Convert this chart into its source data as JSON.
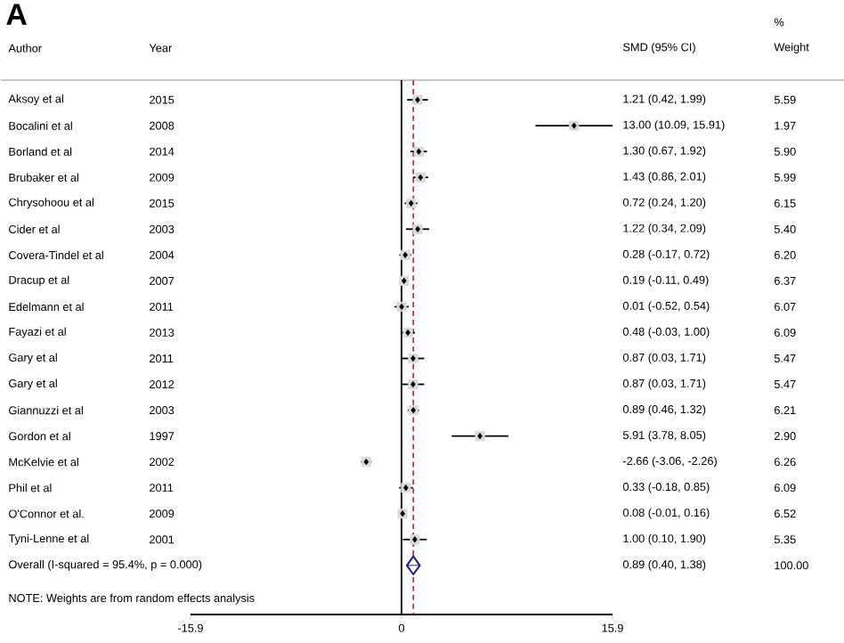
{
  "chart_data": {
    "type": "scatter",
    "orientation": "horizontal",
    "title": "A",
    "categories": [
      "Aksoy et al",
      "Bocalini et al",
      "Borland et al",
      "Brubaker et al",
      "Chrysohoou et al",
      "Cider et al",
      "Covera-Tindel et al",
      "Dracup et al",
      "Edelmann et al",
      "Fayazi et al",
      "Gary  et al",
      "Gary et al",
      "Giannuzzi et al",
      "Gordon et al",
      "McKelvie et al",
      "Phil et al",
      "O'Connor et al.",
      "Tyni-Lenne et al",
      "Overall  (I-squared = 95.4%, p = 0.000)"
    ],
    "series": [
      {
        "color": "#000000",
        "marker": "diamond",
        "values": [
          1.21,
          13.0,
          1.3,
          1.43,
          0.72,
          1.22,
          0.28,
          0.19,
          0.01,
          0.48,
          0.87,
          0.87,
          0.89,
          5.91,
          -2.66,
          0.33,
          0.08,
          1.0,
          null
        ],
        "errors": [
          [
            0.42,
            1.99
          ],
          [
            10.09,
            15.91
          ],
          [
            0.67,
            1.92
          ],
          [
            0.86,
            2.01
          ],
          [
            0.24,
            1.2
          ],
          [
            0.34,
            2.09
          ],
          [
            -0.17,
            0.72
          ],
          [
            -0.11,
            0.49
          ],
          [
            -0.52,
            0.54
          ],
          [
            -0.03,
            1.0
          ],
          [
            0.03,
            1.71
          ],
          [
            0.03,
            1.71
          ],
          [
            0.46,
            1.32
          ],
          [
            3.78,
            8.05
          ],
          [
            -3.06,
            -2.26
          ],
          [
            -0.18,
            0.85
          ],
          [
            -0.01,
            0.16
          ],
          [
            0.1,
            1.9
          ],
          null
        ]
      },
      {
        "color": "#1a1a8c",
        "marker": "diamond",
        "values": [
          null,
          null,
          null,
          null,
          null,
          null,
          null,
          null,
          null,
          null,
          null,
          null,
          null,
          null,
          null,
          null,
          null,
          null,
          0.89
        ],
        "errors": [
          null,
          null,
          null,
          null,
          null,
          null,
          null,
          null,
          null,
          null,
          null,
          null,
          null,
          null,
          null,
          null,
          null,
          null,
          [
            0.4,
            1.38
          ]
        ]
      }
    ],
    "xlim": [
      -15.9,
      15.9
    ],
    "xticks": [
      -15.9,
      0,
      15.9
    ],
    "ref_lines": [
      {
        "axis": "x",
        "value": 0,
        "color": "#000000",
        "line_style": "solid"
      },
      {
        "axis": "x",
        "value": 0.89,
        "color": "#b03050",
        "line_style": "dashed"
      }
    ],
    "annotations": [
      "Author",
      "Year",
      "SMD (95% CI)",
      "%",
      "Weight",
      "NOTE: Weights are from random effects analysis",
      "2015",
      "2008",
      "2014",
      "2009",
      "2015",
      "2003",
      "2004",
      "2007",
      "2011",
      "2013",
      "2011",
      "2012",
      "2003",
      "1997",
      "2002",
      "2011",
      "2009",
      "2001",
      "5.59",
      "1.97",
      "5.90",
      "5.99",
      "6.15",
      "5.40",
      "6.20",
      "6.37",
      "6.07",
      "6.09",
      "5.47",
      "5.47",
      "6.21",
      "2.90",
      "6.26",
      "6.09",
      "6.52",
      "5.35",
      "100.00",
      "1.21 (0.42, 1.99)",
      "13.00 (10.09, 15.91)",
      "1.30 (0.67, 1.92)",
      "1.43 (0.86, 2.01)",
      "0.72 (0.24, 1.20)",
      "1.22 (0.34, 2.09)",
      "0.28 (-0.17, 0.72)",
      "0.19 (-0.11, 0.49)",
      "0.01 (-0.52, 0.54)",
      "0.48 (-0.03, 1.00)",
      "0.87 (0.03, 1.71)",
      "0.87 (0.03, 1.71)",
      "0.89 (0.46, 1.32)",
      "5.91 (3.78, 8.05)",
      "-2.66 (-3.06, -2.26)",
      "0.33 (-0.18, 0.85)",
      "0.08 (-0.01, 0.16)",
      "1.00 (0.10, 1.90)",
      "0.89 (0.40, 1.38)"
    ]
  }
}
